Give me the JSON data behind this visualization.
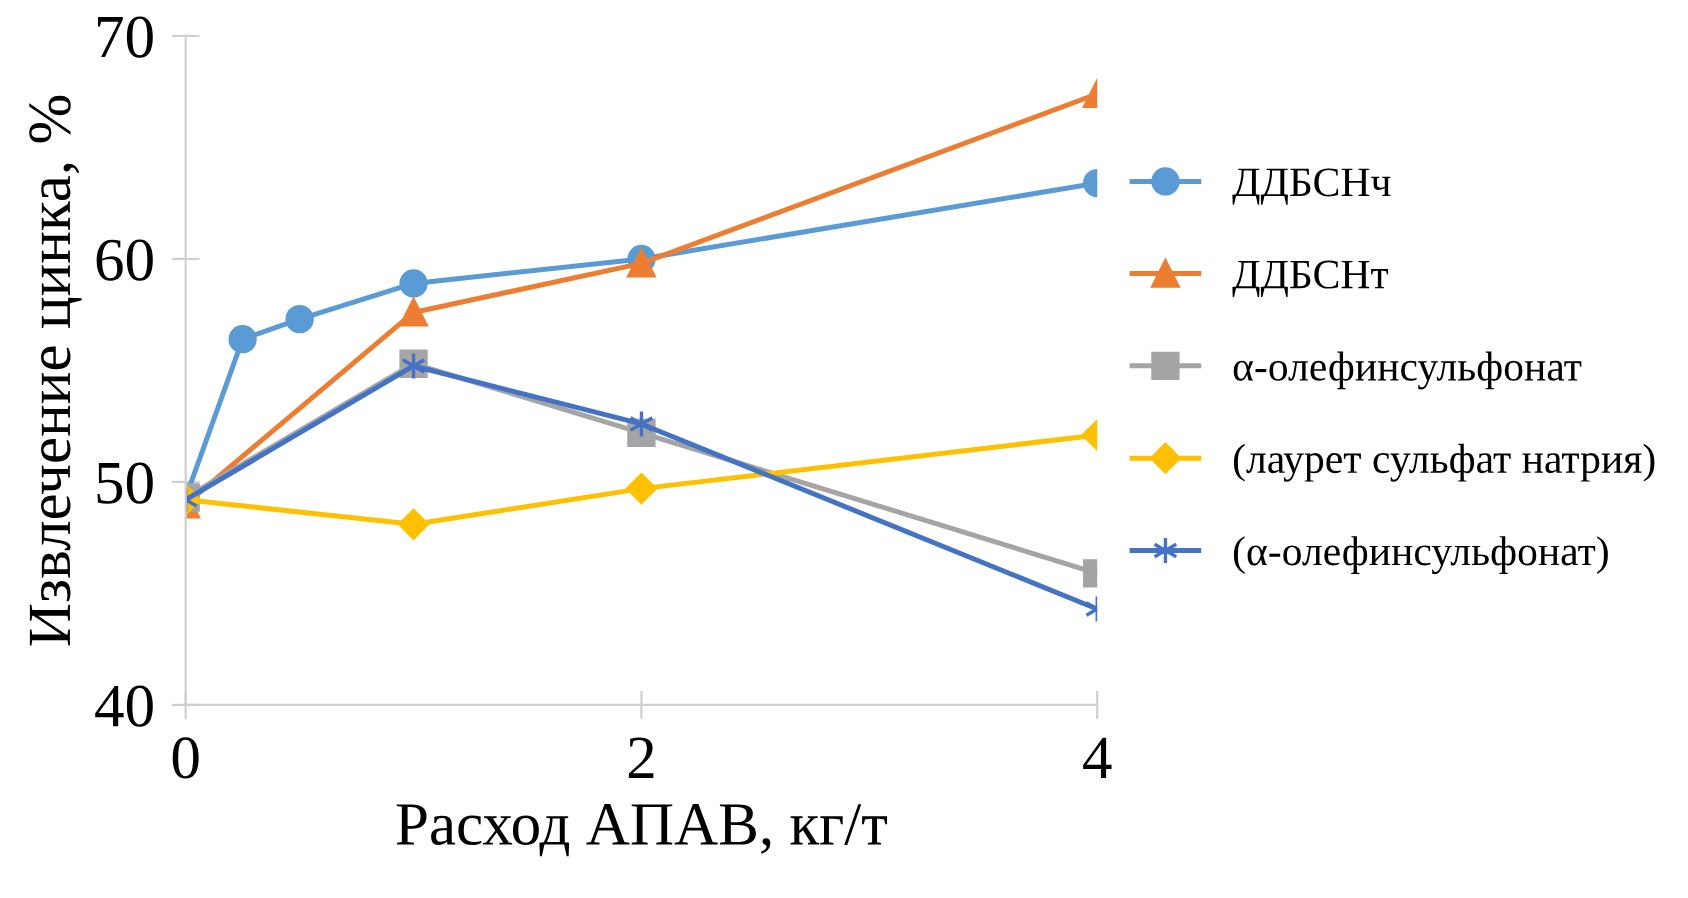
{
  "chart_data": {
    "type": "line",
    "xlabel": "Расход АПАВ, кг/т",
    "ylabel": "Извлечение цинка, %",
    "xlim": [
      0,
      4
    ],
    "xticks": [
      0,
      2,
      4
    ],
    "ylim": [
      40,
      70
    ],
    "yticks": [
      40,
      50,
      60,
      70
    ],
    "grid": false,
    "legend": "right",
    "series": [
      {
        "name": "ДДБСНч",
        "color": "#5b9bd5",
        "marker": "circle",
        "x": [
          0,
          0.25,
          0.5,
          1,
          2,
          4
        ],
        "values": [
          49.3,
          56.4,
          57.3,
          58.9,
          60.0,
          63.4
        ]
      },
      {
        "name": "ДДБСНт",
        "color": "#ed7d31",
        "marker": "triangle",
        "x": [
          0,
          1,
          2,
          4
        ],
        "values": [
          49.0,
          57.6,
          59.8,
          67.4
        ]
      },
      {
        "name": "α-олефинсульфонат",
        "color": "#a5a5a5",
        "marker": "square",
        "x": [
          0,
          1,
          2,
          4
        ],
        "values": [
          49.3,
          55.3,
          52.2,
          45.9
        ]
      },
      {
        "name": "(лаурет сульфат натрия)",
        "color": "#ffc000",
        "marker": "diamond",
        "x": [
          0,
          1,
          2,
          4
        ],
        "values": [
          49.2,
          48.1,
          49.7,
          52.1
        ]
      },
      {
        "name": "(α-олефинсульфонат)",
        "color": "#4472c4",
        "marker": "cross",
        "x": [
          0,
          1,
          2,
          4
        ],
        "values": [
          49.2,
          55.2,
          52.6,
          44.3
        ]
      }
    ]
  }
}
